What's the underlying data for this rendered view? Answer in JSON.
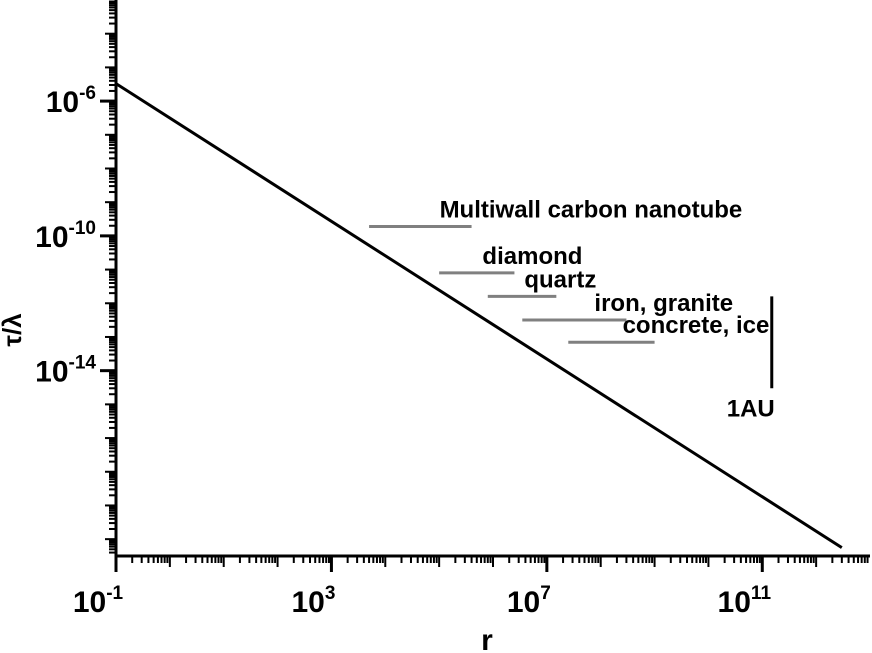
{
  "chart_data": {
    "type": "line",
    "title": "",
    "xlabel": "r",
    "ylabel": "τ/λ",
    "xscale": "log",
    "yscale": "log",
    "xlim_log10": [
      -1,
      13
    ],
    "ylim_log10": [
      -19.5,
      -3
    ],
    "x_tick_labels": [
      {
        "base": "10",
        "exp": "-1"
      },
      {
        "base": "10",
        "exp": "3"
      },
      {
        "base": "10",
        "exp": "7"
      },
      {
        "base": "10",
        "exp": "11"
      }
    ],
    "x_major_exponents": [
      -1,
      3,
      7,
      11
    ],
    "y_tick_labels": [
      {
        "base": "10",
        "exp": "-6"
      },
      {
        "base": "10",
        "exp": "-10"
      },
      {
        "base": "10",
        "exp": "-14"
      }
    ],
    "y_major_exponents": [
      -6,
      -10,
      -14
    ],
    "series": [
      {
        "points": [
          [
            0.1,
            3.3e-06
          ],
          [
            3000000000000.0,
            5.6e-20
          ]
        ]
      }
    ],
    "annotations": [
      {
        "label": "Multiwall carbon nanotube",
        "x_start": 5000,
        "x_end": 400000.0,
        "y": 1.9e-10
      },
      {
        "label": "diamond",
        "x_start": 100000.0,
        "x_end": 2500000.0,
        "y": 8e-12
      },
      {
        "label": "quartz",
        "x_start": 800000.0,
        "x_end": 15000000.0,
        "y": 1.6e-12
      },
      {
        "label": "iron, granite",
        "x_start": 3500000.0,
        "x_end": 300000000.0,
        "y": 3.2e-13
      },
      {
        "label": "concrete, ice",
        "x_start": 25000000.0,
        "x_end": 1000000000.0,
        "y": 7e-14
      }
    ],
    "marker": {
      "label": "1AU",
      "x": 150000000000.0,
      "y_top": 1.6e-12,
      "y_bottom": 3e-15
    },
    "grid": false,
    "legend": "none"
  }
}
